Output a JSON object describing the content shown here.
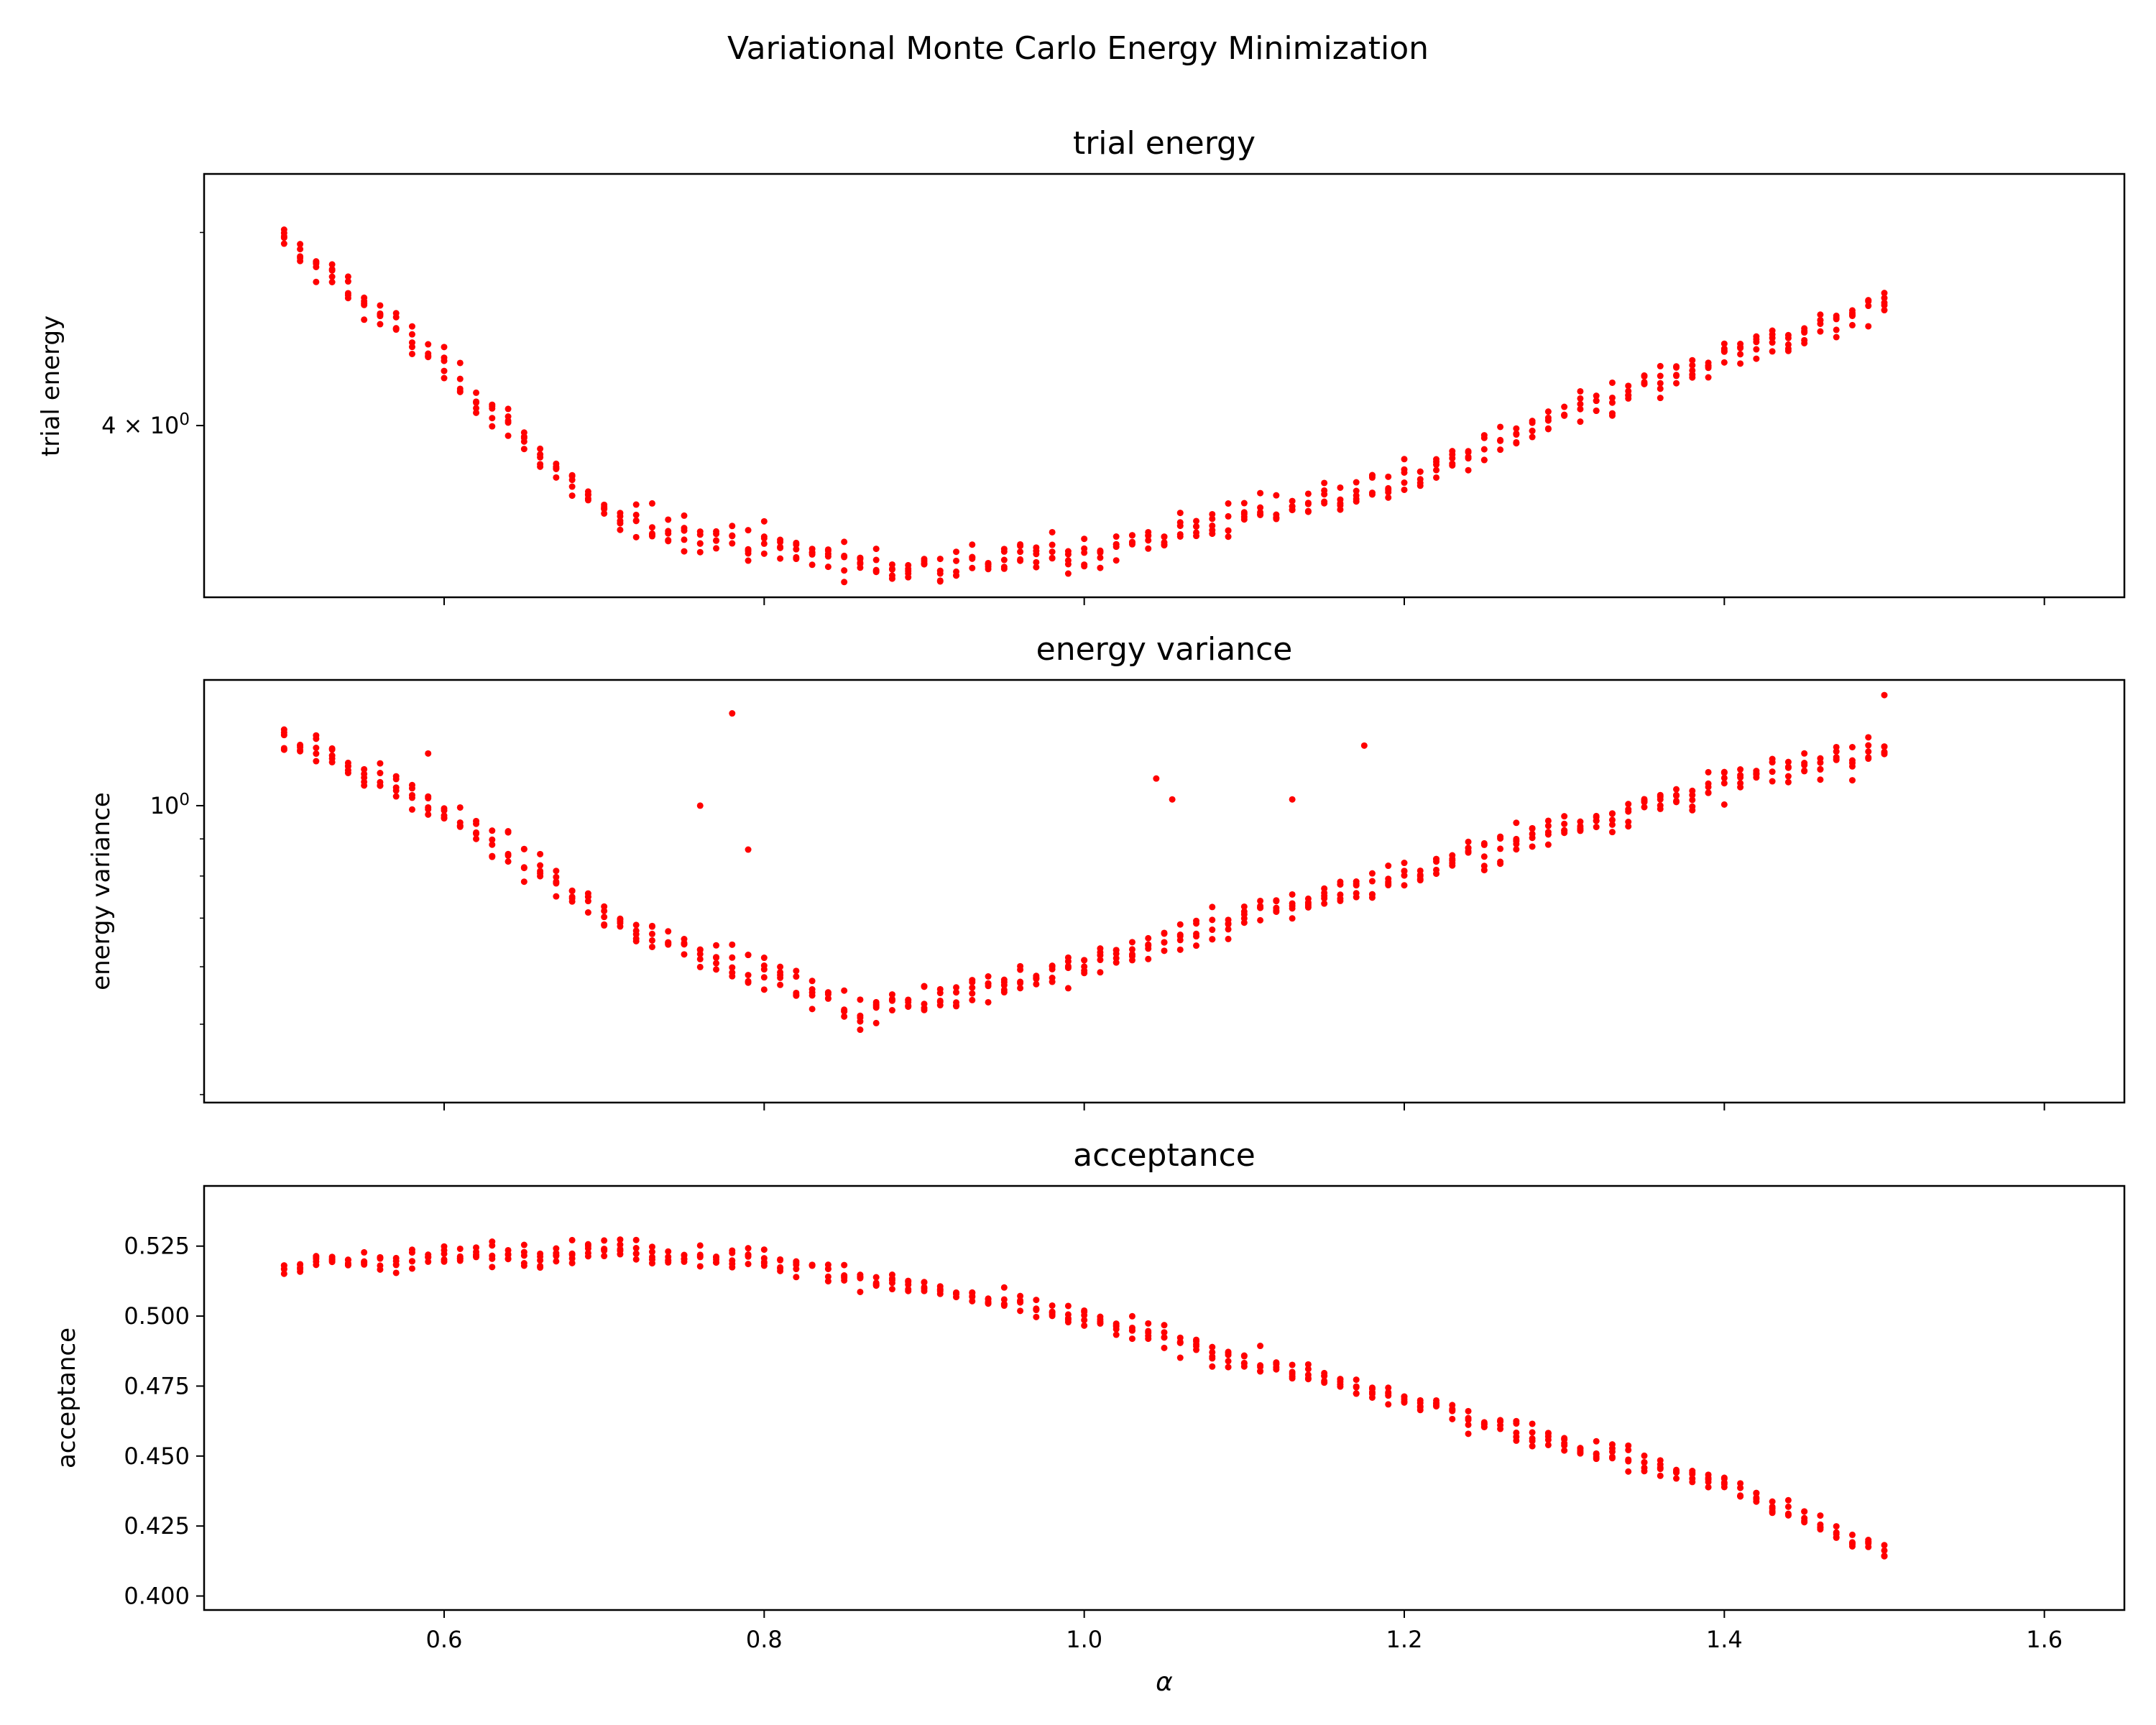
{
  "figure": {
    "suptitle": "Variational Monte Carlo Energy Minimization",
    "xlabel": "α",
    "marker_color": "#ff0000"
  },
  "chart_data": [
    {
      "type": "scatter",
      "title": "trial energy",
      "ylabel": "trial energy",
      "yscale": "log",
      "xlim": [
        0.45,
        1.65
      ],
      "ylim": [
        3.28,
        5.35
      ],
      "xticks": [
        0.6,
        0.8,
        1.0,
        1.2,
        1.4,
        1.6
      ],
      "xtick_labels_shown": false,
      "yticks": [
        {
          "value": 4.0,
          "label": "4 × 10^0"
        }
      ],
      "grid": false,
      "model": {
        "x_points": 101,
        "samples_per_x": 5,
        "curve_min_alpha": 0.88,
        "curve_min_value": 3.39,
        "values_at": [
          [
            0.5,
            4.95
          ],
          [
            0.7,
            3.6
          ],
          [
            0.88,
            3.39
          ],
          [
            1.0,
            3.45
          ],
          [
            1.2,
            3.75
          ],
          [
            1.5,
            4.6
          ]
        ],
        "scatter_rel": 0.02
      }
    },
    {
      "type": "scatter",
      "title": "energy variance",
      "ylabel": "energy variance",
      "yscale": "log",
      "xlim": [
        0.45,
        1.65
      ],
      "ylim": [
        0.39,
        1.49
      ],
      "xticks": [
        0.6,
        0.8,
        1.0,
        1.2,
        1.4,
        1.6
      ],
      "xtick_labels_shown": false,
      "yticks": [
        {
          "value": 1.0,
          "label": "10^0"
        }
      ],
      "grid": false,
      "model": {
        "x_points": 101,
        "samples_per_x": 5,
        "values_at": [
          [
            0.5,
            1.25
          ],
          [
            0.7,
            0.7
          ],
          [
            0.86,
            0.52
          ],
          [
            1.0,
            0.6
          ],
          [
            1.2,
            0.8
          ],
          [
            1.5,
            1.2
          ]
        ],
        "scatter_rel": 0.05
      },
      "outliers": [
        [
          0.78,
          1.34
        ],
        [
          0.76,
          1.0
        ],
        [
          0.59,
          1.18
        ],
        [
          1.045,
          1.09
        ],
        [
          1.175,
          1.21
        ],
        [
          1.5,
          1.42
        ],
        [
          0.79,
          0.87
        ],
        [
          1.055,
          1.02
        ],
        [
          1.13,
          1.02
        ]
      ]
    },
    {
      "type": "scatter",
      "title": "acceptance",
      "ylabel": "acceptance",
      "yscale": "linear",
      "xlim": [
        0.45,
        1.65
      ],
      "ylim": [
        0.395,
        0.5465
      ],
      "xticks": [
        0.6,
        0.8,
        1.0,
        1.2,
        1.4,
        1.6
      ],
      "xtick_labels": [
        "0.6",
        "0.8",
        "1.0",
        "1.2",
        "1.4",
        "1.6"
      ],
      "yticks": [
        {
          "value": 0.4,
          "label": "0.400"
        },
        {
          "value": 0.425,
          "label": "0.425"
        },
        {
          "value": 0.45,
          "label": "0.450"
        },
        {
          "value": 0.475,
          "label": "0.475"
        },
        {
          "value": 0.5,
          "label": "0.500"
        },
        {
          "value": 0.525,
          "label": "0.525"
        }
      ],
      "grid": false,
      "model": {
        "x_points": 101,
        "samples_per_x": 5,
        "values_at": [
          [
            0.5,
            0.518
          ],
          [
            0.7,
            0.524
          ],
          [
            0.8,
            0.52
          ],
          [
            0.9,
            0.51
          ],
          [
            1.0,
            0.499
          ],
          [
            1.2,
            0.47
          ],
          [
            1.4,
            0.44
          ],
          [
            1.5,
            0.415
          ]
        ],
        "scatter_abs": 0.004
      }
    }
  ]
}
